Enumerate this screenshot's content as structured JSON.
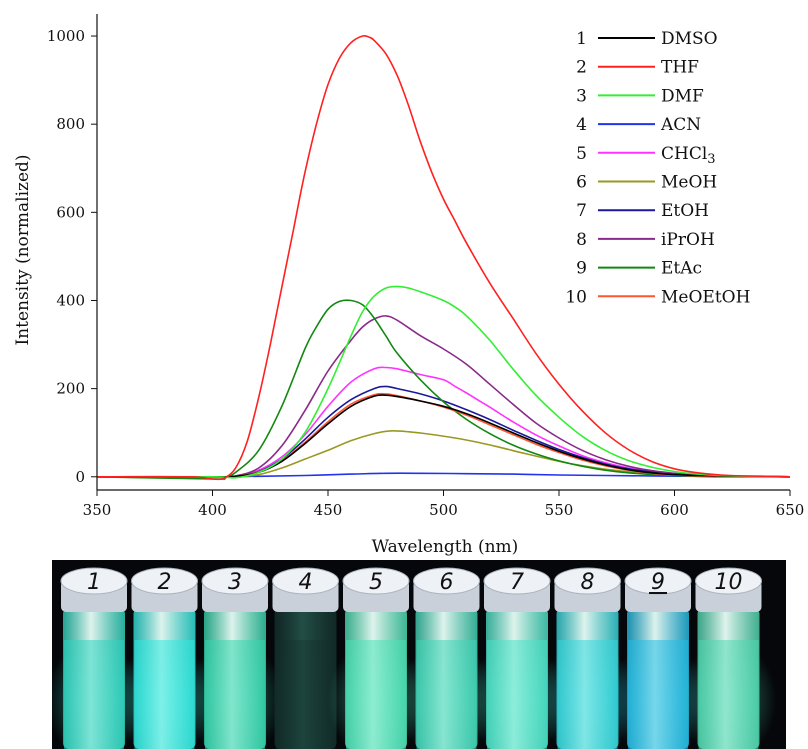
{
  "chart_data": {
    "type": "line",
    "title": "",
    "xlabel": "Wavelength (nm)",
    "ylabel": "Intensity (normalized)",
    "xlim": [
      350,
      650
    ],
    "ylim": [
      -30,
      1050
    ],
    "xticks": [
      "350",
      "400",
      "450",
      "500",
      "550",
      "600",
      "650"
    ],
    "yticks": [
      "0",
      "200",
      "400",
      "600",
      "800",
      "1000"
    ],
    "legend_position": "top-right",
    "grid": false,
    "series": [
      {
        "num": "1",
        "name": "DMSO",
        "color": "#000000",
        "x": [
          350,
          400,
          410,
          420,
          430,
          440,
          450,
          460,
          470,
          475,
          480,
          490,
          500,
          510,
          520,
          530,
          540,
          550,
          560,
          570,
          580,
          590,
          600,
          610,
          620,
          630,
          650
        ],
        "y": [
          0,
          0,
          1,
          10,
          35,
          75,
          120,
          160,
          183,
          185,
          182,
          172,
          160,
          143,
          122,
          100,
          78,
          58,
          41,
          27,
          16,
          9,
          5,
          3,
          2,
          1,
          0
        ]
      },
      {
        "num": "2",
        "name": "THF",
        "color": "#ff2020",
        "x": [
          350,
          390,
          400,
          405,
          410,
          415,
          420,
          425,
          430,
          435,
          440,
          445,
          450,
          455,
          460,
          465,
          468,
          470,
          475,
          480,
          485,
          490,
          495,
          500,
          505,
          510,
          520,
          530,
          540,
          550,
          560,
          570,
          580,
          590,
          600,
          610,
          620,
          630,
          640,
          650
        ],
        "y": [
          0,
          0,
          -5,
          -3,
          20,
          80,
          180,
          300,
          430,
          560,
          690,
          800,
          890,
          950,
          985,
          1000,
          997,
          990,
          960,
          910,
          840,
          760,
          690,
          630,
          580,
          530,
          440,
          360,
          280,
          210,
          150,
          100,
          62,
          35,
          18,
          9,
          4,
          2,
          1,
          0
        ]
      },
      {
        "num": "3",
        "name": "DMF",
        "color": "#33ee33",
        "x": [
          350,
          400,
          410,
          420,
          430,
          440,
          450,
          460,
          465,
          470,
          475,
          480,
          485,
          490,
          500,
          505,
          510,
          520,
          530,
          540,
          550,
          560,
          570,
          580,
          590,
          600,
          610,
          620,
          630,
          650
        ],
        "y": [
          0,
          0,
          -2,
          10,
          40,
          100,
          200,
          320,
          375,
          410,
          428,
          432,
          428,
          420,
          400,
          385,
          365,
          310,
          245,
          185,
          135,
          92,
          60,
          37,
          22,
          12,
          6,
          3,
          1,
          0
        ]
      },
      {
        "num": "4",
        "name": "ACN",
        "color": "#2233ee",
        "x": [
          350,
          400,
          420,
          440,
          460,
          475,
          490,
          510,
          530,
          550,
          570,
          590,
          610,
          650
        ],
        "y": [
          0,
          0,
          1,
          3,
          6,
          8,
          8,
          7,
          6,
          4,
          3,
          2,
          1,
          0
        ]
      },
      {
        "num": "5",
        "name": "CHCl3",
        "color": "#ff33ff",
        "x": [
          350,
          400,
          410,
          420,
          430,
          440,
          450,
          460,
          470,
          475,
          480,
          490,
          500,
          505,
          510,
          520,
          530,
          540,
          550,
          560,
          570,
          580,
          590,
          600,
          610,
          620,
          630,
          650
        ],
        "y": [
          0,
          0,
          1,
          15,
          45,
          95,
          160,
          215,
          245,
          248,
          245,
          232,
          220,
          205,
          190,
          158,
          125,
          95,
          70,
          48,
          32,
          20,
          12,
          7,
          4,
          2,
          1,
          0
        ]
      },
      {
        "num": "6",
        "name": "MeOH",
        "color": "#999922",
        "x": [
          350,
          400,
          410,
          420,
          430,
          440,
          450,
          460,
          470,
          477,
          485,
          495,
          505,
          515,
          525,
          535,
          545,
          555,
          565,
          575,
          585,
          595,
          605,
          615,
          650
        ],
        "y": [
          0,
          0,
          0,
          5,
          20,
          40,
          60,
          82,
          98,
          104,
          102,
          96,
          88,
          78,
          66,
          53,
          41,
          30,
          21,
          14,
          9,
          5,
          3,
          1,
          0
        ]
      },
      {
        "num": "7",
        "name": "EtOH",
        "color": "#1a1a99",
        "x": [
          350,
          400,
          410,
          420,
          430,
          440,
          450,
          460,
          470,
          475,
          480,
          490,
          500,
          510,
          520,
          530,
          540,
          550,
          560,
          570,
          580,
          590,
          600,
          610,
          620,
          630,
          650
        ],
        "y": [
          0,
          0,
          1,
          12,
          40,
          85,
          135,
          175,
          200,
          205,
          200,
          188,
          172,
          152,
          130,
          106,
          83,
          62,
          44,
          29,
          18,
          11,
          6,
          3,
          2,
          1,
          0
        ]
      },
      {
        "num": "8",
        "name": "iPrOH",
        "color": "#8a2a8a",
        "x": [
          350,
          400,
          410,
          420,
          430,
          440,
          450,
          460,
          465,
          470,
          475,
          480,
          490,
          500,
          510,
          520,
          530,
          540,
          550,
          560,
          570,
          580,
          590,
          600,
          610,
          620,
          630,
          650
        ],
        "y": [
          0,
          0,
          2,
          20,
          70,
          150,
          240,
          310,
          340,
          358,
          365,
          355,
          320,
          290,
          255,
          210,
          165,
          122,
          88,
          60,
          39,
          24,
          14,
          8,
          4,
          2,
          1,
          0
        ]
      },
      {
        "num": "9",
        "name": "EtAc",
        "color": "#118811",
        "x": [
          350,
          400,
          405,
          410,
          420,
          430,
          440,
          445,
          450,
          455,
          460,
          465,
          470,
          475,
          480,
          490,
          500,
          510,
          520,
          530,
          540,
          550,
          560,
          570,
          580,
          590,
          600,
          610,
          620,
          650
        ],
        "y": [
          0,
          -5,
          -3,
          10,
          60,
          160,
          290,
          340,
          380,
          398,
          400,
          390,
          360,
          320,
          280,
          220,
          170,
          130,
          98,
          72,
          52,
          36,
          24,
          15,
          9,
          5,
          3,
          1,
          0,
          0
        ]
      },
      {
        "num": "10",
        "name": "MeOEtOH",
        "color": "#ff5533",
        "x": [
          350,
          400,
          410,
          420,
          430,
          440,
          450,
          460,
          470,
          475,
          480,
          490,
          500,
          510,
          520,
          530,
          540,
          550,
          560,
          570,
          580,
          590,
          600,
          610,
          620,
          630,
          650
        ],
        "y": [
          0,
          0,
          1,
          11,
          36,
          78,
          125,
          165,
          186,
          188,
          184,
          172,
          158,
          140,
          118,
          96,
          74,
          55,
          38,
          25,
          15,
          8,
          4,
          2,
          1,
          1,
          0
        ]
      }
    ]
  },
  "photo": {
    "vial_labels": [
      "1",
      "2",
      "3",
      "4",
      "5",
      "6",
      "7",
      "8",
      "9",
      "10"
    ],
    "vial_colors": [
      "#2fd6c1",
      "#2ee9e0",
      "#34d7ae",
      "#14302c",
      "#4be3b6",
      "#3fd7b8",
      "#49e4c8",
      "#33d9df",
      "#22bde6",
      "#4fd8b0"
    ]
  }
}
